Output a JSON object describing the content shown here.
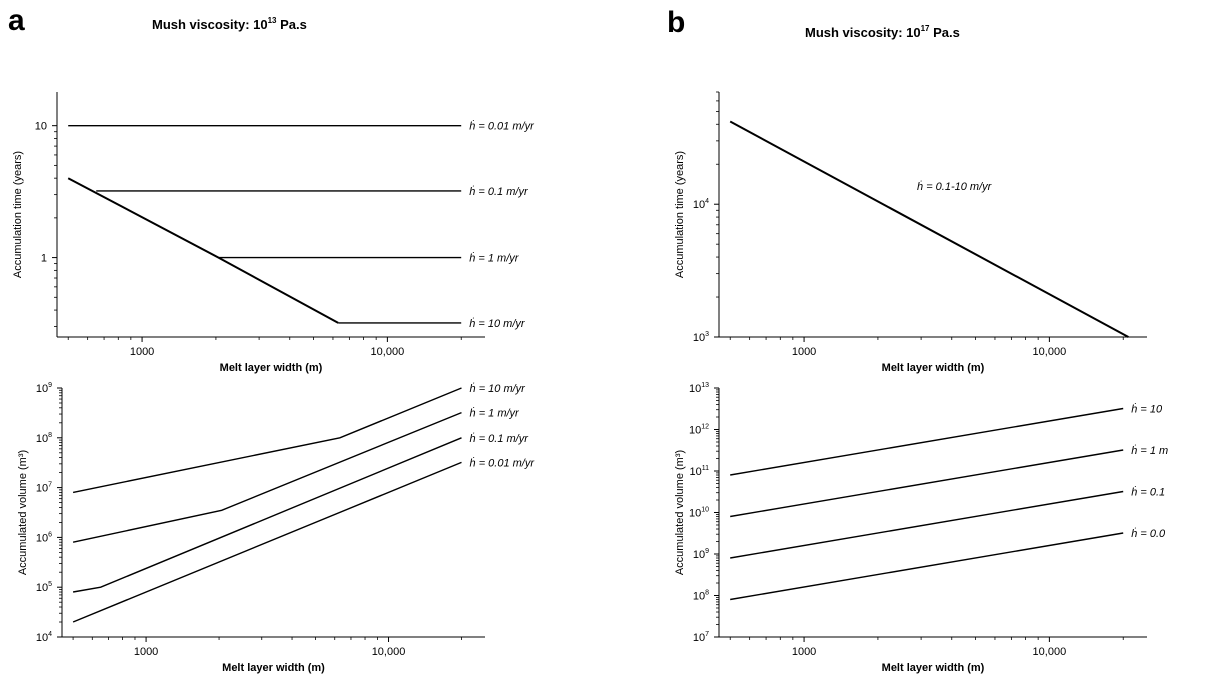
{
  "panels": [
    {
      "letter": "a",
      "title_main": "Mush viscosity: 10",
      "title_exp": "13",
      "title_unit": " Pa.s"
    },
    {
      "letter": "b",
      "title_main": "Mush viscosity: 10",
      "title_exp": "17",
      "title_unit": " Pa.s"
    }
  ],
  "chart_data": [
    {
      "id": "a-top",
      "type": "line",
      "xlabel": "Melt layer width (m)",
      "ylabel": "Accumulation time (years)",
      "xscale": "log",
      "yscale": "log",
      "xlim": [
        450,
        25000
      ],
      "ylim": [
        0.25,
        18
      ],
      "xticks": [
        {
          "v": 1000,
          "label": "1000"
        },
        {
          "v": 10000,
          "label": "10,000"
        }
      ],
      "yticks": [
        {
          "v": 1,
          "label": "1",
          "exp": ""
        },
        {
          "v": 10,
          "label": "10",
          "exp": ""
        }
      ],
      "series": [
        {
          "line_label": "= 0.01 m/yr",
          "points": [
            [
              500,
              10
            ],
            [
              20000,
              10
            ]
          ],
          "width": 1.4
        },
        {
          "line_label": "= 0.1 m/yr",
          "points": [
            [
              650,
              3.2
            ],
            [
              20000,
              3.2
            ]
          ],
          "width": 1.4
        },
        {
          "line_label": "= 1 m/yr",
          "points": [
            [
              2050,
              1.0
            ],
            [
              20000,
              1.0
            ]
          ],
          "width": 1.4
        },
        {
          "line_label": "= 10 m/yr",
          "points": [
            [
              6300,
              0.32
            ],
            [
              20000,
              0.32
            ]
          ],
          "width": 1.4
        },
        {
          "line_label": "",
          "points": [
            [
              500,
              4.0
            ],
            [
              2050,
              1.0
            ],
            [
              6300,
              0.32
            ]
          ],
          "width": 2.0
        }
      ]
    },
    {
      "id": "a-bottom",
      "type": "line",
      "xlabel": "Melt layer width (m)",
      "ylabel": "Accumulated volume (m³)",
      "xscale": "log",
      "yscale": "log",
      "xlim": [
        450,
        25000
      ],
      "ylim": [
        10000,
        1000000000
      ],
      "xticks": [
        {
          "v": 1000,
          "label": "1000"
        },
        {
          "v": 10000,
          "label": "10,000"
        }
      ],
      "yticks": [
        {
          "v": 10000,
          "label": "10",
          "exp": "4"
        },
        {
          "v": 100000,
          "label": "10",
          "exp": "5"
        },
        {
          "v": 1000000,
          "label": "10",
          "exp": "6"
        },
        {
          "v": 10000000,
          "label": "10",
          "exp": "7"
        },
        {
          "v": 100000000,
          "label": "10",
          "exp": "8"
        },
        {
          "v": 1000000000,
          "label": "10",
          "exp": "9"
        }
      ],
      "series": [
        {
          "line_label": "= 10 m/yr",
          "points": [
            [
              500,
              8000000
            ],
            [
              6300,
              100000000
            ],
            [
              20000,
              1000000000
            ]
          ],
          "width": 1.4
        },
        {
          "line_label": "= 1 m/yr",
          "points": [
            [
              500,
              800000
            ],
            [
              2050,
              3500000
            ],
            [
              20000,
              320000000
            ]
          ],
          "width": 1.4
        },
        {
          "line_label": "= 0.1 m/yr",
          "points": [
            [
              500,
              80000
            ],
            [
              650,
              100000
            ],
            [
              20000,
              100000000
            ]
          ],
          "width": 1.4
        },
        {
          "line_label": "= 0.01 m/yr",
          "points": [
            [
              500,
              20000
            ],
            [
              20000,
              32000000
            ]
          ],
          "width": 1.4
        }
      ]
    },
    {
      "id": "b-top",
      "type": "line",
      "xlabel": "Melt layer width (m)",
      "ylabel": "Accumulation time (years)",
      "xscale": "log",
      "yscale": "log",
      "xlim": [
        450,
        25000
      ],
      "ylim": [
        1000,
        70000
      ],
      "xticks": [
        {
          "v": 1000,
          "label": "1000"
        },
        {
          "v": 10000,
          "label": "10,000"
        }
      ],
      "yticks": [
        {
          "v": 1000,
          "label": "10",
          "exp": "3"
        },
        {
          "v": 10000,
          "label": "10",
          "exp": "4"
        }
      ],
      "series": [
        {
          "line_label": "= 0.1-10 m/yr",
          "points": [
            [
              500,
              42000
            ],
            [
              21000,
              1000
            ]
          ],
          "width": 2.0
        }
      ]
    },
    {
      "id": "b-bottom",
      "type": "line",
      "xlabel": "Melt layer width (m)",
      "ylabel": "Accumulated volume (m³)",
      "xscale": "log",
      "yscale": "log",
      "xlim": [
        450,
        25000
      ],
      "ylim": [
        10000000,
        10000000000000
      ],
      "xticks": [
        {
          "v": 1000,
          "label": "1000"
        },
        {
          "v": 10000,
          "label": "10,000"
        }
      ],
      "yticks": [
        {
          "v": 10000000,
          "label": "10",
          "exp": "7"
        },
        {
          "v": 100000000,
          "label": "10",
          "exp": "8"
        },
        {
          "v": 1000000000,
          "label": "10",
          "exp": "9"
        },
        {
          "v": 10000000000,
          "label": "10",
          "exp": "10"
        },
        {
          "v": 100000000000,
          "label": "10",
          "exp": "11"
        },
        {
          "v": 1000000000000,
          "label": "10",
          "exp": "12"
        },
        {
          "v": 10000000000000,
          "label": "10",
          "exp": "13"
        }
      ],
      "series": [
        {
          "line_label": "= 10",
          "points": [
            [
              500,
              80000000000
            ],
            [
              20000,
              3200000000000
            ]
          ],
          "width": 1.4
        },
        {
          "line_label": "= 1 m",
          "points": [
            [
              500,
              8000000000
            ],
            [
              20000,
              320000000000
            ]
          ],
          "width": 1.4
        },
        {
          "line_label": "= 0.1",
          "points": [
            [
              500,
              800000000
            ],
            [
              20000,
              32000000000
            ]
          ],
          "width": 1.4
        },
        {
          "line_label": "= 0.0",
          "points": [
            [
              500,
              80000000
            ],
            [
              20000,
              3200000000
            ]
          ],
          "width": 1.4
        }
      ]
    }
  ]
}
